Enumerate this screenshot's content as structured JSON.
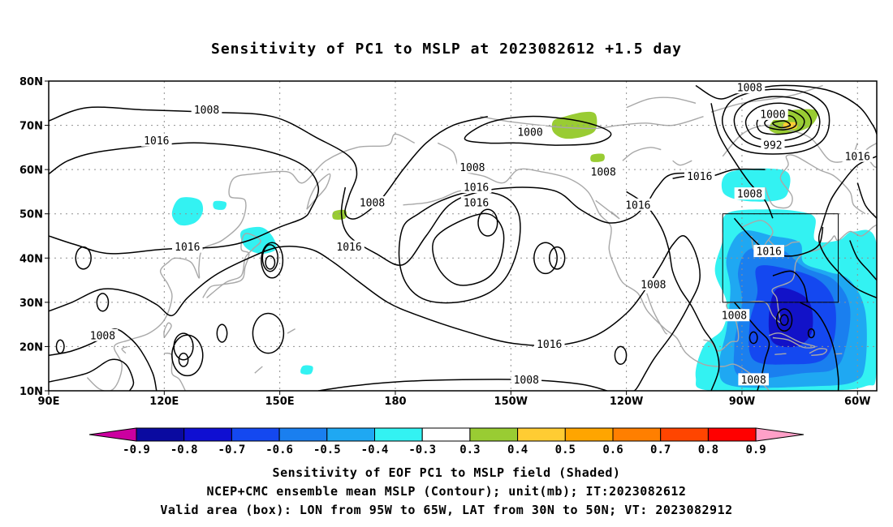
{
  "title": "Sensitivity of PC1 to MSLP at 2023082612 +1.5 day",
  "map": {
    "lon_range_deg_east": [
      90,
      305
    ],
    "lat_range": [
      10,
      80
    ],
    "lat_ticks": [
      {
        "value": 80,
        "label": "80N"
      },
      {
        "value": 70,
        "label": "70N"
      },
      {
        "value": 60,
        "label": "60N"
      },
      {
        "value": 50,
        "label": "50N"
      },
      {
        "value": 40,
        "label": "40N"
      },
      {
        "value": 30,
        "label": "30N"
      },
      {
        "value": 20,
        "label": "20N"
      },
      {
        "value": 10,
        "label": "10N"
      }
    ],
    "lon_ticks": [
      {
        "value": 90,
        "label": "90E"
      },
      {
        "value": 120,
        "label": "120E"
      },
      {
        "value": 150,
        "label": "150E"
      },
      {
        "value": 180,
        "label": "180"
      },
      {
        "value": 210,
        "label": "150W"
      },
      {
        "value": 240,
        "label": "120W"
      },
      {
        "value": 270,
        "label": "90W"
      },
      {
        "value": 300,
        "label": "60W"
      }
    ],
    "grid": true,
    "valid_box": {
      "lon_west": 265,
      "lon_east": 295,
      "lat_south": 30,
      "lat_north": 50
    },
    "colors": {
      "contour": "#000000",
      "coast": "#a8a8a8",
      "grid": "#909090",
      "shade_neg_0_3": "#33f2f2",
      "shade_neg_0_5": "#1fa8f2",
      "shade_neg_0_6": "#1a7fef",
      "shade_neg_0_7": "#1448f0",
      "shade_neg_0_8": "#1212c8",
      "shade_pos_0_3": "#99cc33",
      "shade_pos_0_4": "#ffcc33"
    },
    "contour_labels": [
      {
        "lon": 131,
        "lat": 73.5,
        "text": "1008"
      },
      {
        "lon": 118,
        "lat": 66.5,
        "text": "1016"
      },
      {
        "lon": 126,
        "lat": 42.5,
        "text": "1016"
      },
      {
        "lon": 168,
        "lat": 42.5,
        "text": "1016"
      },
      {
        "lon": 174,
        "lat": 52.5,
        "text": "1008"
      },
      {
        "lon": 104,
        "lat": 22.5,
        "text": "1008"
      },
      {
        "lon": 215,
        "lat": 68.5,
        "text": "1000"
      },
      {
        "lon": 200,
        "lat": 60.5,
        "text": "1008"
      },
      {
        "lon": 234,
        "lat": 59.5,
        "text": "1008"
      },
      {
        "lon": 201,
        "lat": 56,
        "text": "1016"
      },
      {
        "lon": 201,
        "lat": 52.5,
        "text": "1016"
      },
      {
        "lon": 272,
        "lat": 78.5,
        "text": "1008"
      },
      {
        "lon": 278,
        "lat": 72.5,
        "text": "1000"
      },
      {
        "lon": 278,
        "lat": 65.5,
        "text": "992"
      },
      {
        "lon": 300,
        "lat": 63,
        "text": "1016"
      },
      {
        "lon": 259,
        "lat": 58.5,
        "text": "1016"
      },
      {
        "lon": 272,
        "lat": 54.5,
        "text": "1008"
      },
      {
        "lon": 243,
        "lat": 52,
        "text": "1016"
      },
      {
        "lon": 277,
        "lat": 41.5,
        "text": "1016"
      },
      {
        "lon": 247,
        "lat": 34,
        "text": "1008"
      },
      {
        "lon": 268,
        "lat": 27,
        "text": "1008"
      },
      {
        "lon": 220,
        "lat": 20.5,
        "text": "1016"
      },
      {
        "lon": 214,
        "lat": 12.5,
        "text": "1008"
      },
      {
        "lon": 273,
        "lat": 12.5,
        "text": "1008"
      }
    ]
  },
  "colorbar": {
    "labels": [
      "-0.9",
      "-0.8",
      "-0.7",
      "-0.6",
      "-0.5",
      "-0.4",
      "-0.3",
      "0.3",
      "0.4",
      "0.5",
      "0.6",
      "0.7",
      "0.8",
      "0.9"
    ],
    "low_triangle_color": "#cc00a0",
    "high_triangle_color": "#ffa0c8",
    "colors": [
      "#0a0aa0",
      "#0f0fd2",
      "#1448f0",
      "#1a7fef",
      "#1fa8f2",
      "#33f2f2",
      "#ffffff",
      "#99cc33",
      "#ffcc33",
      "#ffa500",
      "#ff7f00",
      "#ff4500",
      "#ff0000"
    ]
  },
  "caption_lines": [
    "Sensitivity of EOF PC1 to MSLP field (Shaded)",
    "NCEP+CMC ensemble mean MSLP (Contour); unit(mb); IT:2023082612",
    "Valid area (box): LON from 95W to 65W, LAT from 30N to 50N; VT: 2023082912"
  ]
}
